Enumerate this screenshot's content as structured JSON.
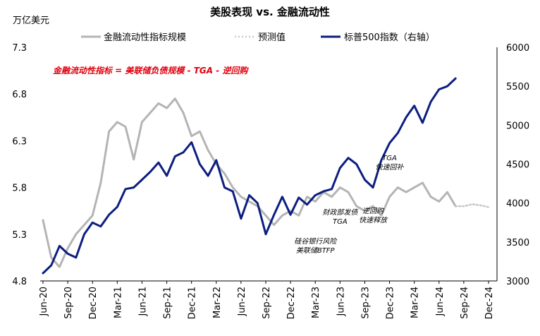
{
  "chart_data": {
    "type": "line",
    "title": "美股表现 vs. 金融流动性",
    "ylabel_left": "万亿美元",
    "left_axis": {
      "ylim": [
        4.8,
        7.3
      ],
      "ticks": [
        "7.3",
        "6.8",
        "6.3",
        "5.8",
        "5.3",
        "4.8"
      ]
    },
    "right_axis": {
      "ylim": [
        3000,
        6000
      ],
      "ticks": [
        "6000",
        "5500",
        "5000",
        "4500",
        "4000",
        "3500",
        "3000"
      ]
    },
    "x_ticks": [
      "Jun-20",
      "Sep-20",
      "Dec-20",
      "Mar-21",
      "Jun-21",
      "Sep-21",
      "Dec-21",
      "Mar-22",
      "Jun-22",
      "Sep-22",
      "Dec-22",
      "Mar-23",
      "Jun-23",
      "Sep-23",
      "Dec-23",
      "Mar-24",
      "Jun-24",
      "Sep-24",
      "Dec-24"
    ],
    "formula_text": "金融流动性指标 = 美联储负债规模 - TGA - 逆回购",
    "legend": {
      "liquidity": "金融流动性指标规模",
      "forecast": "预测值",
      "spx": "标普500指数（右轴）"
    },
    "colors": {
      "liquidity": "#b4b4b4",
      "forecast": "#c8c8c8",
      "spx": "#0c1e80",
      "formula": "#e0000f"
    },
    "series": [
      {
        "name": "金融流动性指标规模",
        "axis": "left",
        "x": [
          "2020-06",
          "2020-07",
          "2020-08",
          "2020-09",
          "2020-10",
          "2020-11",
          "2020-12",
          "2021-01",
          "2021-02",
          "2021-03",
          "2021-04",
          "2021-05",
          "2021-06",
          "2021-07",
          "2021-08",
          "2021-09",
          "2021-10",
          "2021-11",
          "2021-12",
          "2022-01",
          "2022-02",
          "2022-03",
          "2022-04",
          "2022-05",
          "2022-06",
          "2022-07",
          "2022-08",
          "2022-09",
          "2022-10",
          "2022-11",
          "2022-12",
          "2023-01",
          "2023-02",
          "2023-03",
          "2023-04",
          "2023-05",
          "2023-06",
          "2023-07",
          "2023-08",
          "2023-09",
          "2023-10",
          "2023-11",
          "2023-12",
          "2024-01",
          "2024-02",
          "2024-03",
          "2024-04",
          "2024-05",
          "2024-06",
          "2024-07",
          "2024-08"
        ],
        "values": [
          5.45,
          5.05,
          4.95,
          5.15,
          5.3,
          5.4,
          5.5,
          5.85,
          6.4,
          6.5,
          6.45,
          6.1,
          6.5,
          6.6,
          6.7,
          6.65,
          6.75,
          6.6,
          6.35,
          6.4,
          6.2,
          6.05,
          5.95,
          5.8,
          5.7,
          5.65,
          5.6,
          5.5,
          5.4,
          5.5,
          5.55,
          5.5,
          5.7,
          5.65,
          5.75,
          5.7,
          5.8,
          5.75,
          5.6,
          5.55,
          5.6,
          5.5,
          5.7,
          5.8,
          5.75,
          5.8,
          5.85,
          5.7,
          5.65,
          5.75,
          5.6
        ]
      },
      {
        "name": "预测值",
        "axis": "left",
        "x": [
          "2024-08",
          "2024-09",
          "2024-10",
          "2024-11",
          "2024-12"
        ],
        "values": [
          5.6,
          5.6,
          5.62,
          5.61,
          5.59
        ]
      },
      {
        "name": "标普500指数（右轴）",
        "axis": "right",
        "x": [
          "2020-06",
          "2020-07",
          "2020-08",
          "2020-09",
          "2020-10",
          "2020-11",
          "2020-12",
          "2021-01",
          "2021-02",
          "2021-03",
          "2021-04",
          "2021-05",
          "2021-06",
          "2021-07",
          "2021-08",
          "2021-09",
          "2021-10",
          "2021-11",
          "2021-12",
          "2022-01",
          "2022-02",
          "2022-03",
          "2022-04",
          "2022-05",
          "2022-06",
          "2022-07",
          "2022-08",
          "2022-09",
          "2022-10",
          "2022-11",
          "2022-12",
          "2023-01",
          "2023-02",
          "2023-03",
          "2023-04",
          "2023-05",
          "2023-06",
          "2023-07",
          "2023-08",
          "2023-09",
          "2023-10",
          "2023-11",
          "2023-12",
          "2024-01",
          "2024-02",
          "2024-03",
          "2024-04",
          "2024-05",
          "2024-06",
          "2024-07",
          "2024-08"
        ],
        "values": [
          3100,
          3200,
          3450,
          3350,
          3300,
          3600,
          3750,
          3700,
          3850,
          3950,
          4180,
          4200,
          4300,
          4400,
          4520,
          4350,
          4600,
          4650,
          4780,
          4500,
          4350,
          4550,
          4200,
          4150,
          3800,
          4100,
          4000,
          3600,
          3850,
          4080,
          3850,
          4070,
          3980,
          4100,
          4150,
          4180,
          4450,
          4580,
          4500,
          4300,
          4200,
          4550,
          4770,
          4900,
          5100,
          5250,
          5030,
          5300,
          5460,
          5500,
          5600
        ]
      }
    ],
    "annotations": [
      {
        "text": "TGA快速回补",
        "x": "2023-12",
        "y": 4550
      },
      {
        "text": "财政部发债TGA",
        "x": "2023-06",
        "y": 3850
      },
      {
        "text": "逆回购快速释放",
        "x": "2023-10",
        "y": 3870
      },
      {
        "text": "硅谷银行风险美联储BTFP",
        "x": "2023-03",
        "y": 3480
      }
    ],
    "grid": false,
    "legend_position": "top"
  }
}
